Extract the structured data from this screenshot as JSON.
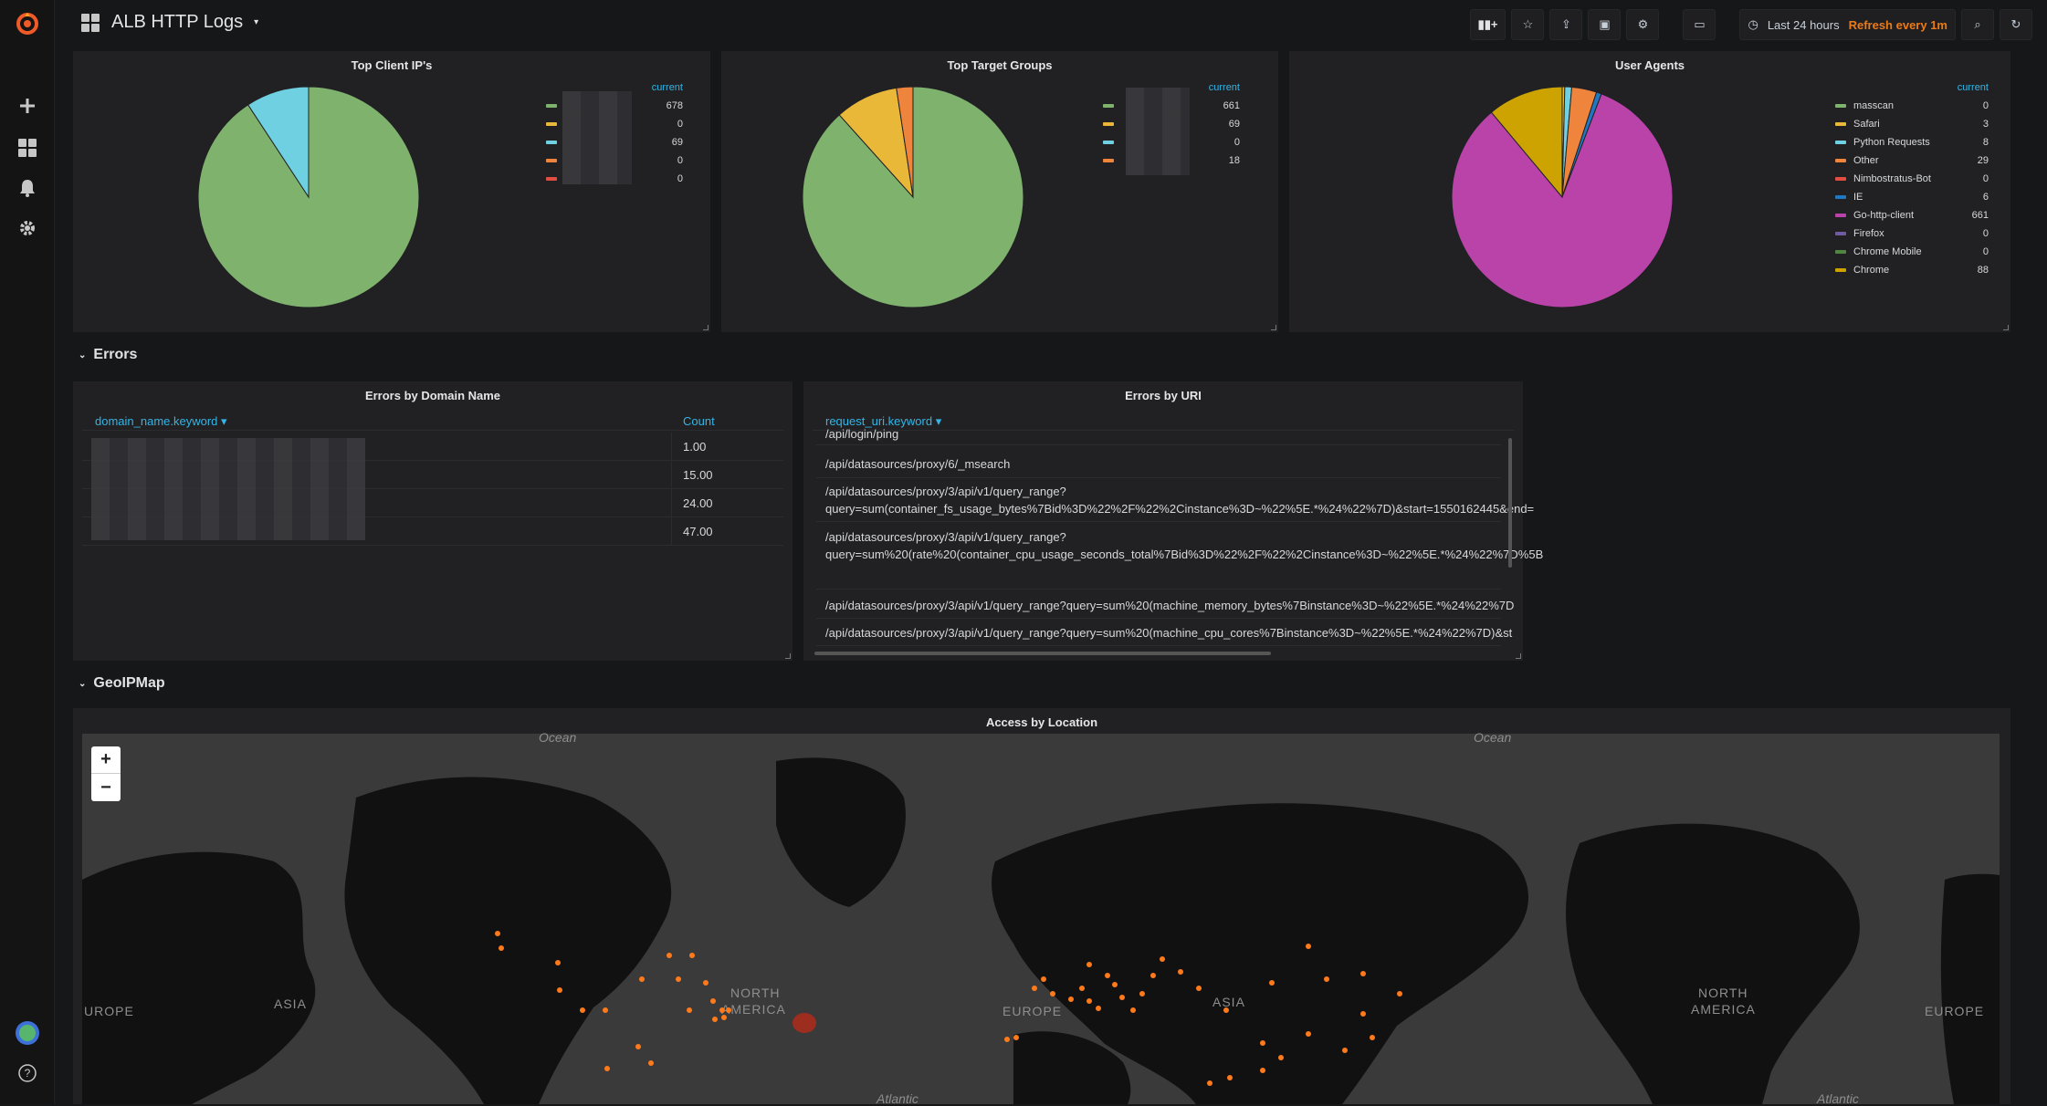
{
  "header": {
    "title": "ALB HTTP Logs",
    "time_range": "Last 24 hours",
    "refresh": "Refresh every 1m"
  },
  "panels": {
    "top_client_ips": {
      "title": "Top Client IP's",
      "legend_header": "current",
      "items": [
        {
          "color": "#7eb26d",
          "value": "678"
        },
        {
          "color": "#eab839",
          "value": "0"
        },
        {
          "color": "#6ed0e0",
          "value": "69"
        },
        {
          "color": "#ef843c",
          "value": "0"
        },
        {
          "color": "#e24d42",
          "value": "0"
        }
      ]
    },
    "top_target_groups": {
      "title": "Top Target Groups",
      "legend_header": "current",
      "items": [
        {
          "color": "#7eb26d",
          "value": "661"
        },
        {
          "color": "#eab839",
          "value": "69"
        },
        {
          "color": "#6ed0e0",
          "value": "0"
        },
        {
          "color": "#ef843c",
          "value": "18"
        }
      ]
    },
    "user_agents": {
      "title": "User Agents",
      "legend_header": "current",
      "items": [
        {
          "color": "#7eb26d",
          "name": "masscan",
          "value": "0"
        },
        {
          "color": "#eab839",
          "name": "Safari",
          "value": "3"
        },
        {
          "color": "#6ed0e0",
          "name": "Python Requests",
          "value": "8"
        },
        {
          "color": "#ef843c",
          "name": "Other",
          "value": "29"
        },
        {
          "color": "#e24d42",
          "name": "Nimbostratus-Bot",
          "value": "0"
        },
        {
          "color": "#1f78c1",
          "name": "IE",
          "value": "6"
        },
        {
          "color": "#ba43a9",
          "name": "Go-http-client",
          "value": "661"
        },
        {
          "color": "#705da0",
          "name": "Firefox",
          "value": "0"
        },
        {
          "color": "#508642",
          "name": "Chrome Mobile",
          "value": "0"
        },
        {
          "color": "#cca300",
          "name": "Chrome",
          "value": "88"
        }
      ]
    }
  },
  "rows": {
    "errors": "Errors",
    "geoipmap": "GeoIPMap"
  },
  "errors_by_domain": {
    "title": "Errors by Domain Name",
    "col1": "domain_name.keyword",
    "col2": "Count",
    "counts": [
      "1.00",
      "15.00",
      "24.00",
      "47.00"
    ]
  },
  "errors_by_uri": {
    "title": "Errors by URI",
    "col1": "request_uri.keyword",
    "rows": [
      "/api/login/ping",
      "/api/datasources/proxy/6/_msearch",
      "/api/datasources/proxy/3/api/v1/query_range?",
      "query=sum(container_fs_usage_bytes%7Bid%3D%22%2F%22%2Cinstance%3D~%22%5E.*%24%22%7D)&start=1550162445&end=",
      "/api/datasources/proxy/3/api/v1/query_range?",
      "query=sum%20(rate%20(container_cpu_usage_seconds_total%7Bid%3D%22%2F%22%2Cinstance%3D~%22%5E.*%24%22%7D%5B",
      "/api/datasources/proxy/3/api/v1/query_range?query=sum%20(machine_memory_bytes%7Binstance%3D~%22%5E.*%24%22%7D",
      "/api/datasources/proxy/3/api/v1/query_range?query=sum%20(machine_cpu_cores%7Binstance%3D~%22%5E.*%24%22%7D)&st"
    ]
  },
  "map": {
    "title": "Access by Location",
    "zoom_in": "+",
    "zoom_out": "−",
    "labels": [
      "ASIA",
      "NORTH",
      "AMERICA",
      "EUROPE",
      "ASIA",
      "NORTH",
      "AMERICA",
      "EUROPE",
      "UROPE",
      "Ocean",
      "Ocean",
      "Atlantic",
      "Atlantic"
    ]
  },
  "pie_data": {
    "client_ips": [
      678,
      0,
      69,
      0,
      0
    ],
    "target_groups": [
      661,
      69,
      0,
      18
    ],
    "user_agents": [
      0,
      3,
      8,
      29,
      0,
      6,
      661,
      0,
      0,
      88
    ]
  }
}
